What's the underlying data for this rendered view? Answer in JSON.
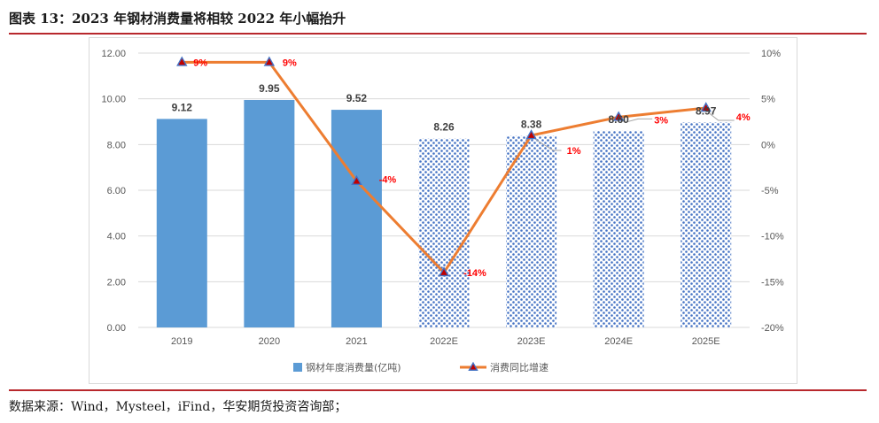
{
  "title": "图表 13：2023 年钢材消费量将相较 2022 年小幅抬升",
  "source": "数据来源：Wind，Mysteel，iFind，华安期货投资咨询部；",
  "colors": {
    "bar": "#5b9bd5",
    "bar_forecast_dots": "#4472c4",
    "line": "#ed7d31",
    "marker": "#c00000",
    "marker_edge": "#4472c4",
    "label_pct": "#ff0000",
    "rule": "#b8282c"
  },
  "chart_data": {
    "type": "bar+line",
    "categories": [
      "2019",
      "2020",
      "2021",
      "2022E",
      "2023E",
      "2024E",
      "2025E"
    ],
    "forecast_from_index": 3,
    "series": [
      {
        "name": "钢材年度消费量(亿吨)",
        "type": "bar",
        "axis": "left",
        "values": [
          9.12,
          9.95,
          9.52,
          8.26,
          8.38,
          8.6,
          8.97
        ],
        "labels": [
          "9.12",
          "9.95",
          "9.52",
          "8.26",
          "8.38",
          "8.60",
          "8.97"
        ]
      },
      {
        "name": "消费同比增速",
        "type": "line",
        "axis": "right",
        "values": [
          9,
          9,
          -4,
          -14,
          1,
          3,
          4
        ],
        "labels": [
          "9%",
          "9%",
          "-4%",
          "-14%",
          "1%",
          "3%",
          "4%"
        ]
      }
    ],
    "y_left": {
      "range": [
        0,
        12
      ],
      "ticks": [
        "0.00",
        "2.00",
        "4.00",
        "6.00",
        "8.00",
        "10.00",
        "12.00"
      ]
    },
    "y_right": {
      "range": [
        -20,
        10
      ],
      "ticks": [
        "-20%",
        "-15%",
        "-10%",
        "-5%",
        "0%",
        "5%",
        "10%"
      ]
    },
    "legend_position": "bottom",
    "grid": true
  }
}
